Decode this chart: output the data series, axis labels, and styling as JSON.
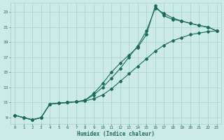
{
  "xlabel": "Humidex (Indice chaleur)",
  "background_color": "#cceae7",
  "grid_color": "#aad4d0",
  "line_color": "#1a6b5e",
  "xlim": [
    -0.5,
    23.5
  ],
  "ylim": [
    8.2,
    24.2
  ],
  "yticks": [
    9,
    11,
    13,
    15,
    17,
    19,
    21,
    23
  ],
  "xticks": [
    0,
    1,
    2,
    3,
    4,
    5,
    6,
    7,
    8,
    9,
    10,
    11,
    12,
    13,
    14,
    15,
    16,
    17,
    18,
    19,
    20,
    21,
    22,
    23
  ],
  "line1_x": [
    0,
    1,
    2,
    3,
    4,
    5,
    6,
    7,
    8,
    9,
    10,
    11,
    12,
    13,
    14,
    15,
    16,
    17,
    18,
    19,
    20,
    21,
    22,
    23
  ],
  "line1_y": [
    9.3,
    9.0,
    8.7,
    9.0,
    10.8,
    10.9,
    11.0,
    11.1,
    11.2,
    11.5,
    12.0,
    12.8,
    13.8,
    14.8,
    15.8,
    16.8,
    17.8,
    18.6,
    19.2,
    19.6,
    20.0,
    20.2,
    20.4,
    20.5
  ],
  "line2_x": [
    0,
    1,
    2,
    3,
    4,
    5,
    6,
    7,
    8,
    9,
    10,
    11,
    12,
    13,
    14,
    15,
    16,
    17,
    18,
    19,
    20,
    21,
    22,
    23
  ],
  "line2_y": [
    9.3,
    9.0,
    8.7,
    9.0,
    10.8,
    10.9,
    11.0,
    11.1,
    11.3,
    12.2,
    13.5,
    15.0,
    16.2,
    17.3,
    18.3,
    20.0,
    23.8,
    22.5,
    22.0,
    21.8,
    21.5,
    21.2,
    21.0,
    20.5
  ],
  "line3_x": [
    0,
    1,
    2,
    3,
    4,
    5,
    6,
    7,
    8,
    9,
    10,
    11,
    12,
    13,
    14,
    15,
    16,
    17,
    18,
    19,
    20,
    21,
    22,
    23
  ],
  "line3_y": [
    9.3,
    9.0,
    8.7,
    9.0,
    10.8,
    10.9,
    11.0,
    11.1,
    11.3,
    12.0,
    13.0,
    14.2,
    15.5,
    17.0,
    18.5,
    20.5,
    23.5,
    22.8,
    22.2,
    21.8,
    21.5,
    21.2,
    21.0,
    20.5
  ]
}
